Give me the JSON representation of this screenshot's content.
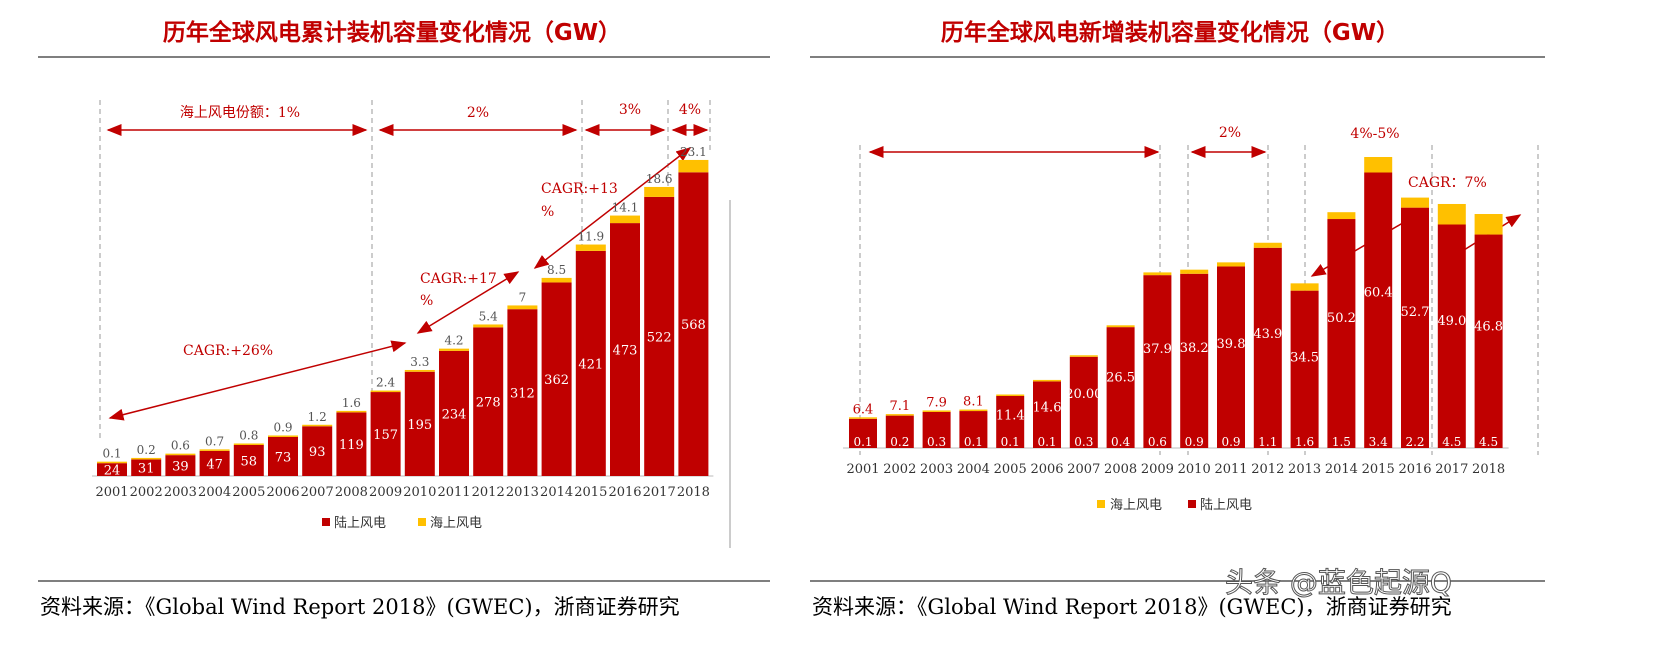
{
  "colors": {
    "onshore": "#c00000",
    "offshore": "#ffc000",
    "accent": "#c00000"
  },
  "watermark": "头条 @蓝色起源Q",
  "chart_data": [
    {
      "type": "bar",
      "stacked": true,
      "title": "历年全球风电累计装机容量变化情况（GW）",
      "categories": [
        "2001",
        "2002",
        "2003",
        "2004",
        "2005",
        "2006",
        "2007",
        "2008",
        "2009",
        "2010",
        "2011",
        "2012",
        "2013",
        "2014",
        "2015",
        "2016",
        "2017",
        "2018"
      ],
      "series": [
        {
          "name": "陆上风电",
          "values": [
            24,
            31,
            39,
            47,
            58,
            73,
            93,
            119,
            157,
            195,
            234,
            278,
            312,
            362,
            421,
            473,
            522,
            568
          ]
        },
        {
          "name": "海上风电",
          "values": [
            0.1,
            0.2,
            0.6,
            0.7,
            0.8,
            0.9,
            1.2,
            1.6,
            2.4,
            3.3,
            4.2,
            5.4,
            7,
            8.5,
            11.9,
            14.1,
            18.6,
            23.1
          ]
        }
      ],
      "legend": [
        "陆上风电",
        "海上风电"
      ],
      "legend_position": "bottom",
      "annotations": {
        "share": [
          "海上风电份额：1%",
          "2%",
          "3%",
          "4%"
        ],
        "cagr": [
          "CAGR:+26%",
          "CAGR:+17",
          "%",
          "CAGR:+13",
          "%"
        ]
      },
      "source": "资料来源：《Global Wind Report 2018》(GWEC)，浙商证券研究"
    },
    {
      "type": "bar",
      "stacked": true,
      "title": "历年全球风电新增装机容量变化情况（GW）",
      "categories": [
        "2001",
        "2002",
        "2003",
        "2004",
        "2005",
        "2006",
        "2007",
        "2008",
        "2009",
        "2010",
        "2011",
        "2012",
        "2013",
        "2014",
        "2015",
        "2016",
        "2017",
        "2018"
      ],
      "series": [
        {
          "name": "陆上风电",
          "values": [
            6.4,
            7.1,
            7.9,
            8.1,
            11.4,
            14.6,
            20.0,
            26.5,
            37.9,
            38.2,
            39.8,
            43.9,
            34.5,
            50.2,
            60.4,
            52.7,
            49.0,
            46.8
          ]
        },
        {
          "name": "海上风电",
          "values": [
            0.1,
            0.2,
            0.3,
            0.1,
            0.1,
            0.1,
            0.3,
            0.4,
            0.6,
            0.9,
            0.9,
            1.1,
            1.6,
            1.5,
            3.4,
            2.2,
            4.5,
            4.5
          ]
        }
      ],
      "labels_onshore": [
        "6.4",
        "7.1",
        "7.9",
        "8.1",
        "11.4",
        "14.6",
        "20.00",
        "26.5",
        "37.9",
        "38.2",
        "39.8",
        "43.9",
        "34.5",
        "50.2",
        "60.4",
        "52.7",
        "49.0",
        "46.8"
      ],
      "legend": [
        "海上风电",
        "陆上风电"
      ],
      "legend_position": "bottom",
      "annotations": {
        "share": [
          "2%",
          "4%-5%"
        ],
        "cagr": [
          "CAGR：7%"
        ]
      },
      "source": "资料来源：《Global Wind Report 2018》(GWEC)，浙商证券研究"
    }
  ]
}
